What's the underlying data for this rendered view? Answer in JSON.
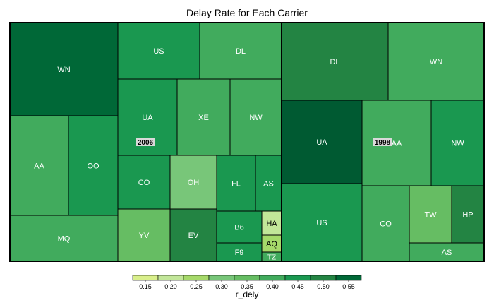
{
  "chart_data": {
    "type": "treemap",
    "title": "Delay Rate for Each Carrier",
    "color_variable": "r_dely",
    "legend": {
      "position": "bottom",
      "breaks": [
        0.15,
        0.2,
        0.25,
        0.3,
        0.35,
        0.4,
        0.45,
        0.5,
        0.55
      ],
      "colors": [
        "#d9ef8b",
        "#c2e699",
        "#a6d96a",
        "#78c679",
        "#66bd63",
        "#41ab5d",
        "#1a9850",
        "#238443",
        "#006837",
        "#005a32"
      ]
    },
    "groups": [
      {
        "name": "2006",
        "cells": [
          {
            "label": "WN",
            "r_dely": 0.53
          },
          {
            "label": "AA",
            "r_dely": 0.38
          },
          {
            "label": "OO",
            "r_dely": 0.41
          },
          {
            "label": "MQ",
            "r_dely": 0.38
          },
          {
            "label": "US",
            "r_dely": 0.44
          },
          {
            "label": "DL",
            "r_dely": 0.39
          },
          {
            "label": "UA",
            "r_dely": 0.43
          },
          {
            "label": "XE",
            "r_dely": 0.37
          },
          {
            "label": "NW",
            "r_dely": 0.36
          },
          {
            "label": "CO",
            "r_dely": 0.42
          },
          {
            "label": "OH",
            "r_dely": 0.27
          },
          {
            "label": "FL",
            "r_dely": 0.42
          },
          {
            "label": "AS",
            "r_dely": 0.44
          },
          {
            "label": "YV",
            "r_dely": 0.33
          },
          {
            "label": "EV",
            "r_dely": 0.48
          },
          {
            "label": "B6",
            "r_dely": 0.44
          },
          {
            "label": "HA",
            "r_dely": 0.17
          },
          {
            "label": "AQ",
            "r_dely": 0.2
          },
          {
            "label": "F9",
            "r_dely": 0.42
          },
          {
            "label": "TZ",
            "r_dely": 0.36
          }
        ]
      },
      {
        "name": "1998",
        "cells": [
          {
            "label": "DL",
            "r_dely": 0.46
          },
          {
            "label": "WN",
            "r_dely": 0.37
          },
          {
            "label": "UA",
            "r_dely": 0.55
          },
          {
            "label": "AA",
            "r_dely": 0.38
          },
          {
            "label": "NW",
            "r_dely": 0.41
          },
          {
            "label": "US",
            "r_dely": 0.44
          },
          {
            "label": "CO",
            "r_dely": 0.39
          },
          {
            "label": "TW",
            "r_dely": 0.31
          },
          {
            "label": "HP",
            "r_dely": 0.45
          },
          {
            "label": "AS",
            "r_dely": 0.38
          }
        ]
      }
    ]
  }
}
